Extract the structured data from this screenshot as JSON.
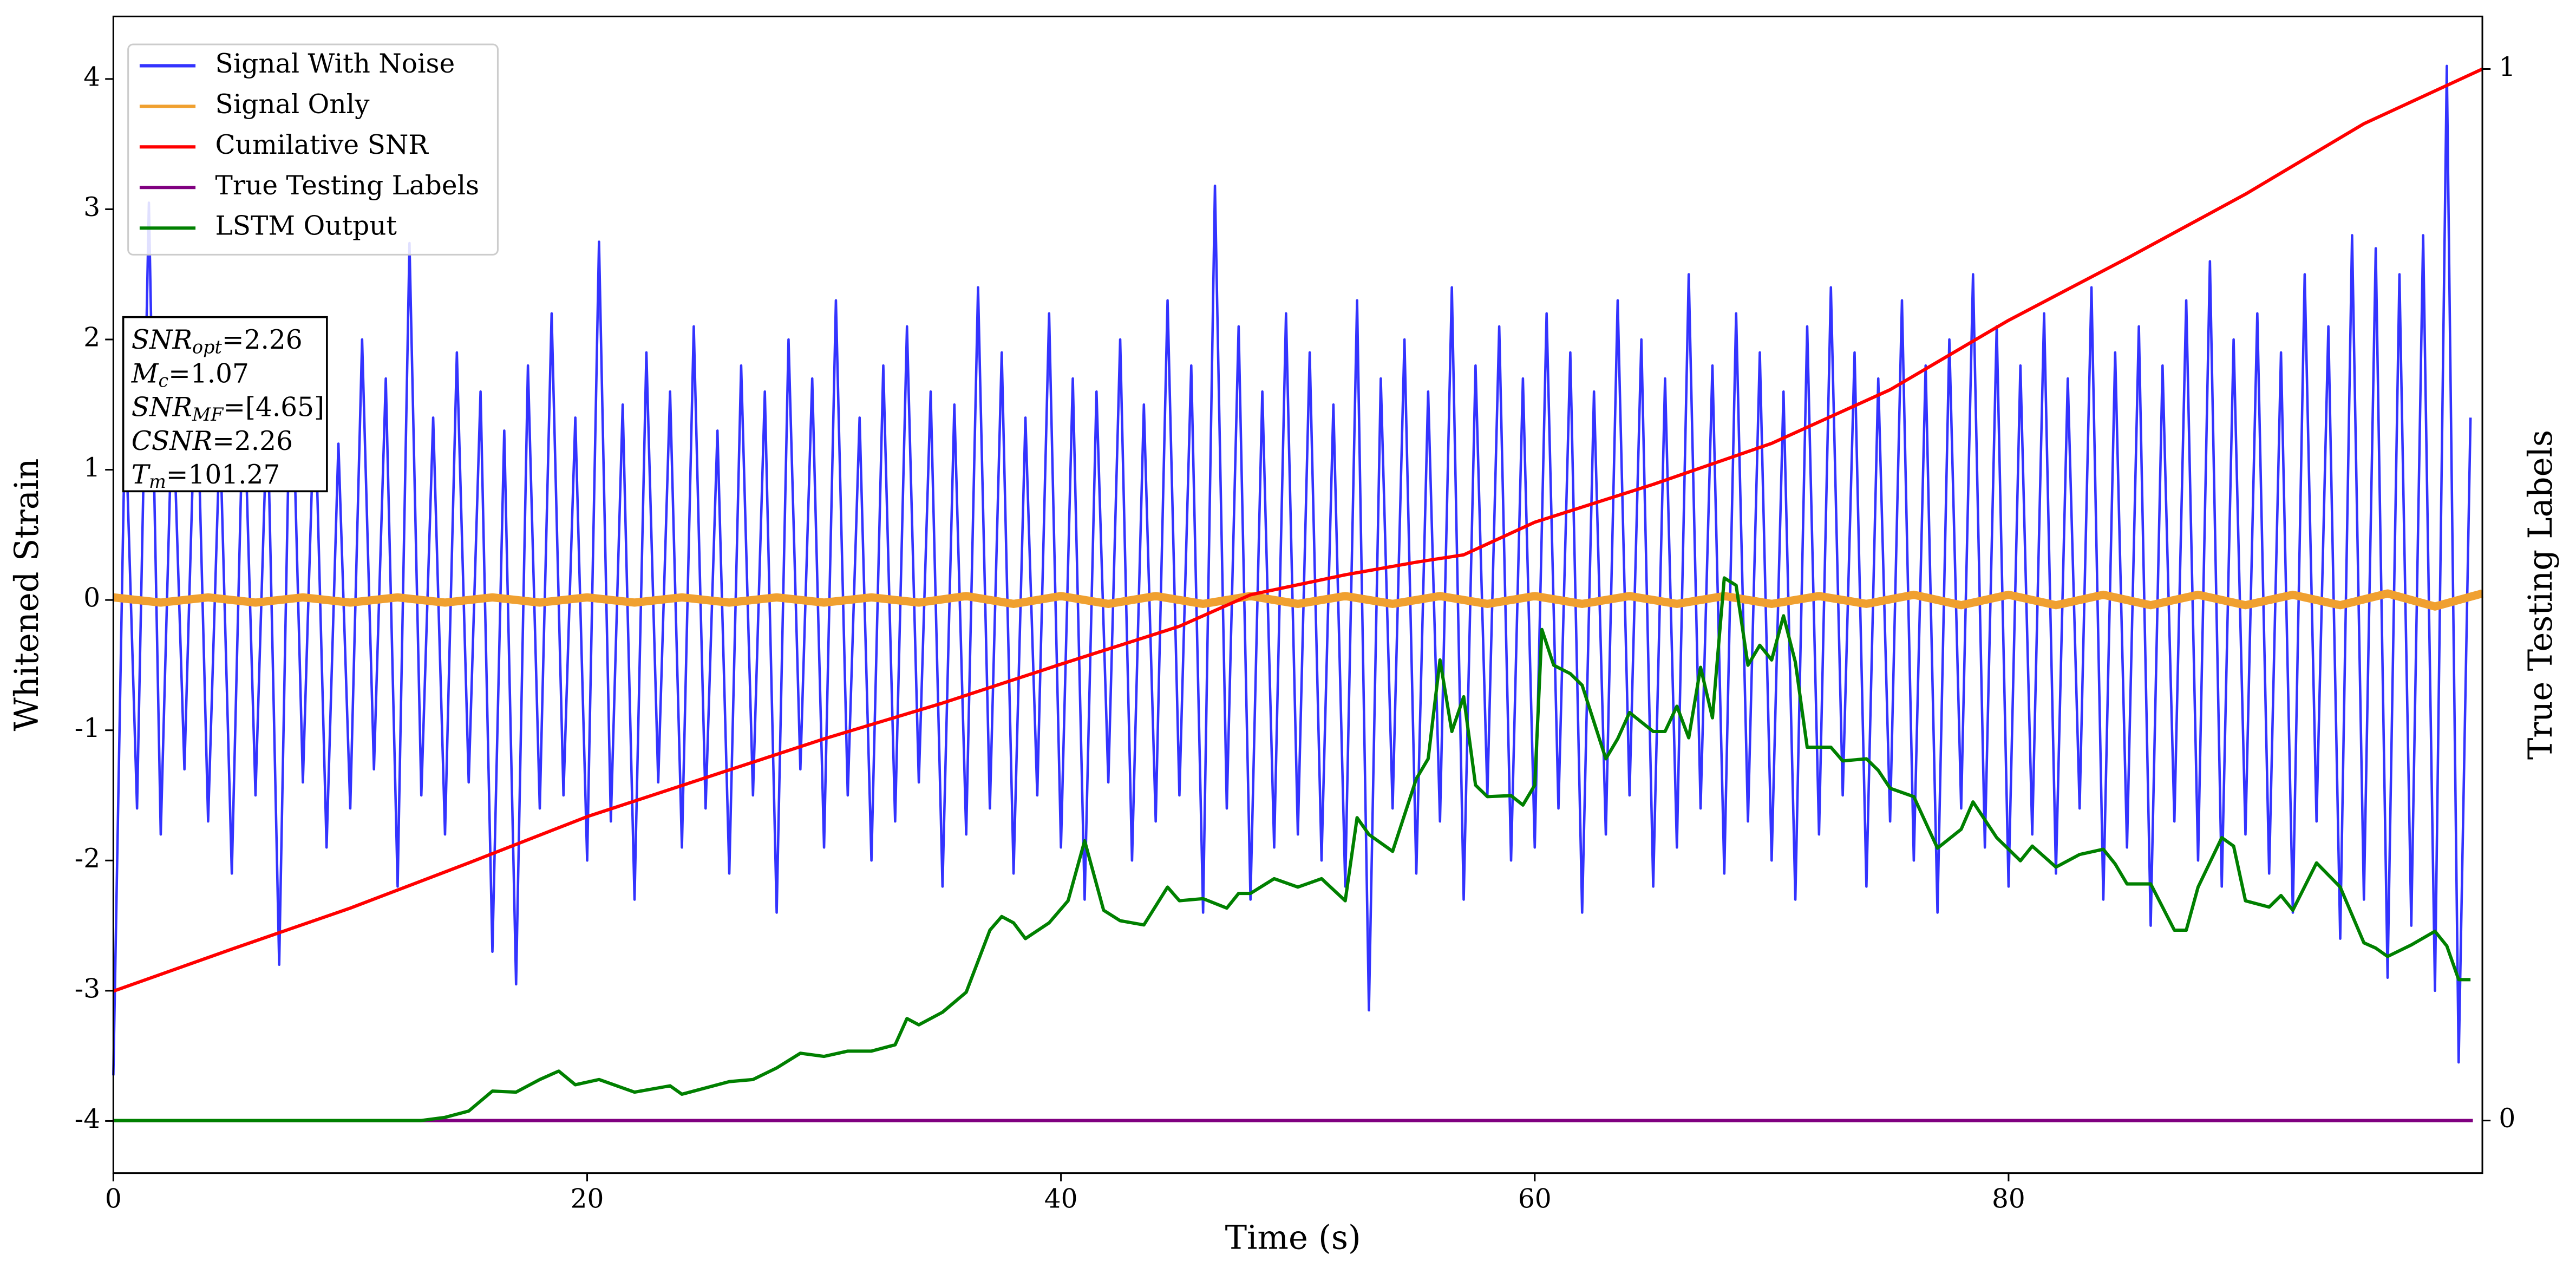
{
  "chart_data": {
    "type": "line",
    "x_label": "Time (s)",
    "y_label": "Whitened Strain",
    "y2_label": "True Testing Labels",
    "xlim": [
      0,
      100
    ],
    "ylim": [
      -4.4,
      4.48
    ],
    "y2lim": [
      -0.05,
      1.05
    ],
    "xticks": [
      0,
      20,
      40,
      60,
      80
    ],
    "yticks": [
      -4,
      -3,
      -2,
      -1,
      0,
      1,
      2,
      3,
      4
    ],
    "y2ticks": [
      0,
      1
    ],
    "legend": "upper left",
    "annotation": [
      {
        "base": "SNR",
        "sub": "opt",
        "text": "=2.26"
      },
      {
        "base": "M",
        "sub": "c",
        "text": "=1.07"
      },
      {
        "base": "SNR",
        "sub": "MF",
        "text": "=[4.65]"
      },
      {
        "base": "CSNR",
        "sub": null,
        "text": "=2.26"
      },
      {
        "base": "T",
        "sub": "m",
        "text": "=101.27"
      }
    ],
    "series": [
      {
        "name": "Signal With Noise",
        "color": "#3333ff",
        "width": 1.5,
        "x": [
          0,
          0.5,
          1,
          1.5,
          2,
          2.5,
          3,
          3.5,
          4,
          4.5,
          5,
          5.5,
          6,
          6.5,
          7,
          7.5,
          8,
          8.5,
          9,
          9.5,
          10,
          10.5,
          11,
          11.5,
          12,
          12.5,
          13,
          13.5,
          14,
          14.5,
          15,
          15.5,
          16,
          16.5,
          17,
          17.5,
          18,
          18.5,
          19,
          19.5,
          20,
          20.5,
          21,
          21.5,
          22,
          22.5,
          23,
          23.5,
          24,
          24.5,
          25,
          25.5,
          26,
          26.5,
          27,
          27.5,
          28,
          28.5,
          29,
          29.5,
          30,
          30.5,
          31,
          31.5,
          32,
          32.5,
          33,
          33.5,
          34,
          34.5,
          35,
          35.5,
          36,
          36.5,
          37,
          37.5,
          38,
          38.5,
          39,
          39.5,
          40,
          40.5,
          41,
          41.5,
          42,
          42.5,
          43,
          43.5,
          44,
          44.5,
          45,
          45.5,
          46,
          46.5,
          47,
          47.5,
          48,
          48.5,
          49,
          49.5,
          50,
          50.5,
          51,
          51.5,
          52,
          52.5,
          53,
          53.5,
          54,
          54.5,
          55,
          55.5,
          56,
          56.5,
          57,
          57.5,
          58,
          58.5,
          59,
          59.5,
          60,
          60.5,
          61,
          61.5,
          62,
          62.5,
          63,
          63.5,
          64,
          64.5,
          65,
          65.5,
          66,
          66.5,
          67,
          67.5,
          68,
          68.5,
          69,
          69.5,
          70,
          70.5,
          71,
          71.5,
          72,
          72.5,
          73,
          73.5,
          74,
          74.5,
          75,
          75.5,
          76,
          76.5,
          77,
          77.5,
          78,
          78.5,
          79,
          79.5,
          80,
          80.5,
          81,
          81.5,
          82,
          82.5,
          83,
          83.5,
          84,
          84.5,
          85,
          85.5,
          86,
          86.5,
          87,
          87.5,
          88,
          88.5,
          89,
          89.5,
          90,
          90.5,
          91,
          91.5,
          92,
          92.5,
          93,
          93.5,
          94,
          94.5,
          95,
          95.5,
          96,
          96.5,
          97,
          97.5,
          98,
          98.5,
          99,
          99.5
        ],
        "values": [
          -3.65,
          1.45,
          -1.6,
          3.05,
          -1.8,
          1.6,
          -1.3,
          1.9,
          -1.7,
          1.3,
          -2.1,
          1.7,
          -1.5,
          1.5,
          -2.8,
          2.1,
          -1.4,
          1.6,
          -1.9,
          1.2,
          -1.6,
          2.0,
          -1.3,
          1.7,
          -2.2,
          2.74,
          -1.5,
          1.4,
          -1.8,
          1.9,
          -1.4,
          1.6,
          -2.7,
          1.3,
          -2.95,
          1.8,
          -1.6,
          2.2,
          -1.5,
          1.4,
          -2.0,
          2.75,
          -1.7,
          1.5,
          -2.3,
          1.9,
          -1.4,
          1.6,
          -1.9,
          2.1,
          -1.6,
          1.3,
          -2.1,
          1.8,
          -1.5,
          1.6,
          -2.4,
          2.0,
          -1.3,
          1.7,
          -1.9,
          2.3,
          -1.5,
          1.4,
          -2.0,
          1.8,
          -1.7,
          2.1,
          -1.4,
          1.6,
          -2.2,
          1.5,
          -1.8,
          2.4,
          -1.6,
          1.9,
          -2.1,
          1.4,
          -1.5,
          2.2,
          -1.9,
          1.7,
          -2.3,
          1.6,
          -1.4,
          2.0,
          -2.0,
          1.5,
          -1.7,
          2.3,
          -1.5,
          1.8,
          -2.4,
          3.18,
          -1.6,
          2.1,
          -2.3,
          1.6,
          -1.9,
          2.2,
          -1.8,
          1.9,
          -2.0,
          1.5,
          -2.2,
          2.3,
          -3.15,
          1.7,
          -1.6,
          2.0,
          -2.1,
          1.6,
          -1.7,
          2.4,
          -2.3,
          1.8,
          -1.5,
          2.1,
          -2.0,
          1.7,
          -1.9,
          2.2,
          -1.6,
          1.9,
          -2.4,
          1.6,
          -1.8,
          2.3,
          -1.5,
          2.0,
          -2.2,
          1.7,
          -1.9,
          2.5,
          -1.6,
          1.8,
          -2.1,
          2.2,
          -1.7,
          1.9,
          -2.0,
          1.6,
          -2.3,
          2.1,
          -1.8,
          2.4,
          -1.5,
          1.9,
          -2.2,
          1.7,
          -1.7,
          2.3,
          -2.0,
          1.8,
          -2.4,
          2.0,
          -1.6,
          2.5,
          -1.9,
          2.1,
          -2.2,
          1.8,
          -1.8,
          2.2,
          -2.1,
          1.7,
          -1.6,
          2.4,
          -2.3,
          1.9,
          -1.9,
          2.1,
          -2.5,
          1.8,
          -1.7,
          2.3,
          -2.0,
          2.6,
          -2.2,
          2.0,
          -1.8,
          2.2,
          -2.1,
          1.9,
          -2.4,
          2.5,
          -1.7,
          2.1,
          -2.6,
          2.8,
          -2.3,
          2.7,
          -2.9,
          2.5,
          -2.5,
          2.8,
          -3.0,
          4.1,
          -3.55,
          1.4
        ]
      },
      {
        "name": "Signal Only",
        "color": "#f0a030",
        "width": 5,
        "x": [
          0,
          2,
          4,
          6,
          8,
          10,
          12,
          14,
          16,
          18,
          20,
          22,
          24,
          26,
          28,
          30,
          32,
          34,
          36,
          38,
          40,
          42,
          44,
          46,
          48,
          50,
          52,
          54,
          56,
          58,
          60,
          62,
          64,
          66,
          68,
          70,
          72,
          74,
          76,
          78,
          80,
          82,
          84,
          86,
          88,
          90,
          92,
          94,
          96,
          98,
          100
        ],
        "values": [
          0.02,
          -0.02,
          0.02,
          -0.02,
          0.02,
          -0.02,
          0.02,
          -0.02,
          0.02,
          -0.02,
          0.02,
          -0.02,
          0.02,
          -0.02,
          0.02,
          -0.02,
          0.02,
          -0.02,
          0.03,
          -0.03,
          0.03,
          -0.03,
          0.03,
          -0.03,
          0.03,
          -0.03,
          0.03,
          -0.03,
          0.03,
          -0.03,
          0.03,
          -0.03,
          0.03,
          -0.03,
          0.03,
          -0.03,
          0.03,
          -0.03,
          0.04,
          -0.04,
          0.04,
          -0.04,
          0.04,
          -0.04,
          0.04,
          -0.04,
          0.04,
          -0.04,
          0.05,
          -0.05,
          0.05
        ]
      },
      {
        "name": "Cumilative SNR",
        "color": "#ff0000",
        "width": 2,
        "axis": "y2",
        "x": [
          0,
          5,
          10,
          15,
          20,
          30,
          35,
          40,
          45,
          48,
          52,
          55,
          57,
          60,
          65,
          70,
          75,
          80,
          85,
          90,
          95,
          100
        ],
        "values": [
          0.123,
          0.163,
          0.202,
          0.245,
          0.289,
          0.363,
          0.397,
          0.434,
          0.47,
          0.5,
          0.519,
          0.531,
          0.538,
          0.569,
          0.605,
          0.644,
          0.695,
          0.761,
          0.82,
          0.881,
          0.948,
          1.0
        ]
      },
      {
        "name": "True Testing Labels",
        "color": "#800080",
        "width": 2,
        "axis": "y2",
        "x": [
          0,
          99.6
        ],
        "values": [
          0,
          0
        ]
      },
      {
        "name": "LSTM Output",
        "color": "#008000",
        "width": 2,
        "axis": "y2",
        "x": [
          0,
          13,
          14,
          15,
          16,
          17,
          18,
          18.8,
          19.5,
          20.5,
          22,
          23.5,
          24,
          26,
          27,
          28,
          29,
          30,
          31,
          32,
          33,
          33.5,
          34,
          35,
          36,
          37,
          37.5,
          38,
          38.5,
          39.5,
          40.3,
          41,
          41.8,
          42.5,
          43.5,
          44.5,
          45,
          46,
          47,
          47.5,
          48,
          49,
          50,
          51,
          52,
          52.5,
          53,
          54,
          55,
          55.5,
          56,
          56.5,
          57,
          57.5,
          58,
          59,
          59.5,
          60,
          60.3,
          60.8,
          61.5,
          62,
          63,
          63.5,
          64,
          65,
          65.5,
          66,
          66.5,
          67,
          67.5,
          68,
          68.5,
          69,
          69.5,
          70,
          70.5,
          71,
          71.5,
          72.5,
          73,
          74,
          74.5,
          75,
          76,
          77,
          78,
          78.5,
          79.5,
          80.5,
          81,
          82,
          83,
          84,
          84.5,
          85,
          86,
          87,
          87.5,
          88,
          89,
          89.5,
          90,
          91,
          91.5,
          92,
          93,
          94,
          95,
          95.5,
          96,
          97,
          98,
          98.5,
          99,
          99.5
        ],
        "values": [
          0,
          0,
          0.003,
          0.009,
          0.028,
          0.027,
          0.039,
          0.047,
          0.034,
          0.039,
          0.027,
          0.033,
          0.025,
          0.037,
          0.039,
          0.05,
          0.064,
          0.061,
          0.066,
          0.066,
          0.072,
          0.097,
          0.091,
          0.103,
          0.122,
          0.181,
          0.194,
          0.188,
          0.173,
          0.188,
          0.209,
          0.266,
          0.2,
          0.19,
          0.186,
          0.222,
          0.209,
          0.211,
          0.202,
          0.216,
          0.216,
          0.23,
          0.222,
          0.23,
          0.209,
          0.288,
          0.272,
          0.256,
          0.325,
          0.344,
          0.438,
          0.37,
          0.403,
          0.319,
          0.308,
          0.309,
          0.3,
          0.319,
          0.467,
          0.433,
          0.425,
          0.414,
          0.344,
          0.363,
          0.388,
          0.37,
          0.37,
          0.394,
          0.364,
          0.431,
          0.383,
          0.516,
          0.509,
          0.433,
          0.452,
          0.438,
          0.48,
          0.436,
          0.355,
          0.355,
          0.342,
          0.344,
          0.333,
          0.316,
          0.308,
          0.259,
          0.277,
          0.303,
          0.269,
          0.247,
          0.261,
          0.241,
          0.253,
          0.258,
          0.244,
          0.225,
          0.225,
          0.181,
          0.181,
          0.222,
          0.269,
          0.261,
          0.209,
          0.203,
          0.214,
          0.2,
          0.245,
          0.222,
          0.169,
          0.164,
          0.156,
          0.167,
          0.18,
          0.166,
          0.134,
          0.134
        ]
      }
    ]
  }
}
